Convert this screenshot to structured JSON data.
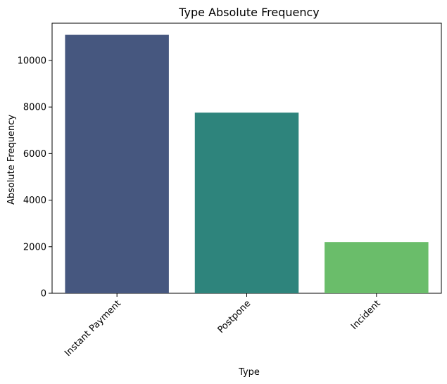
{
  "chart_data": {
    "type": "bar",
    "title": "Type Absolute Frequency",
    "xlabel": "Type",
    "ylabel": "Absolute Frequency",
    "categories": [
      "Instant Payment",
      "Postpone",
      "Incident"
    ],
    "values": [
      11100,
      7760,
      2200
    ],
    "colors": [
      "#46577f",
      "#2e847c",
      "#6abd6a"
    ],
    "ylim": [
      0,
      11600
    ],
    "yticks": [
      0,
      2000,
      4000,
      6000,
      8000,
      10000
    ],
    "ytick_labels": [
      "0",
      "2000",
      "4000",
      "6000",
      "8000",
      "10000"
    ],
    "grid": false,
    "legend": "none"
  }
}
